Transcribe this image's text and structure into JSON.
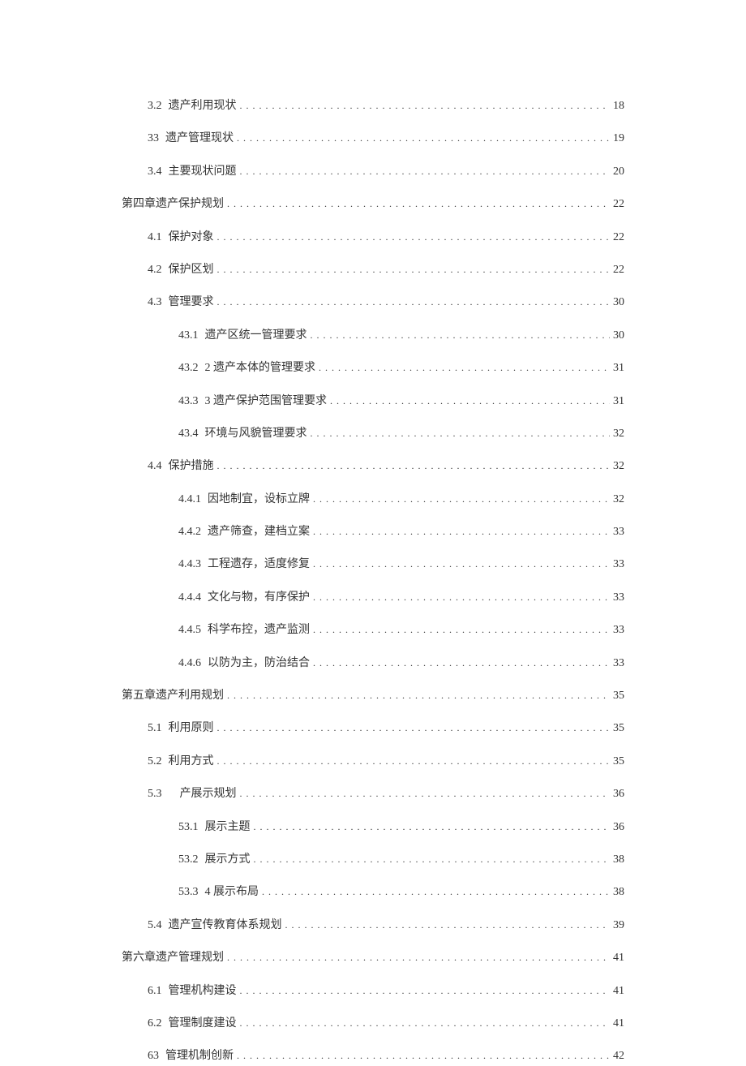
{
  "toc": {
    "entries": [
      {
        "indent": 1,
        "number": "3.2",
        "title": "遗产利用现状",
        "page": "18"
      },
      {
        "indent": 1,
        "number": "33",
        "title": "遗产管理现状",
        "page": "19"
      },
      {
        "indent": 1,
        "number": "3.4",
        "title": "主要现状问题",
        "page": "20"
      },
      {
        "indent": 0,
        "number": "",
        "title": "第四章遗产保护规划",
        "page": "22"
      },
      {
        "indent": 1,
        "number": "4.1",
        "title": "保护对象",
        "page": "22"
      },
      {
        "indent": 1,
        "number": "4.2",
        "title": "保护区划",
        "page": "22"
      },
      {
        "indent": 1,
        "number": "4.3",
        "title": "管理要求",
        "page": "30"
      },
      {
        "indent": 2,
        "number": "43.1",
        "title": "遗产区统一管理要求",
        "page": "30"
      },
      {
        "indent": 2,
        "number": "43.2",
        "title": "2 遗产本体的管理要求",
        "page": "31"
      },
      {
        "indent": 2,
        "number": "43.3",
        "title": "3 遗产保护范围管理要求",
        "page": "31"
      },
      {
        "indent": 2,
        "number": "43.4",
        "title": "环境与风貌管理要求",
        "page": "32"
      },
      {
        "indent": 1,
        "number": "4.4",
        "title": "保护措施",
        "page": "32"
      },
      {
        "indent": 2,
        "number": "4.4.1",
        "title": "因地制宜，设标立牌",
        "page": "32"
      },
      {
        "indent": 2,
        "number": "4.4.2",
        "title": "遗产筛查，建档立案",
        "page": "33"
      },
      {
        "indent": 2,
        "number": "4.4.3",
        "title": "工程遗存，适度修复",
        "page": "33"
      },
      {
        "indent": 2,
        "number": "4.4.4",
        "title": "文化与物，有序保护",
        "page": "33"
      },
      {
        "indent": 2,
        "number": "4.4.5",
        "title": "科学布控，遗产监测",
        "page": "33"
      },
      {
        "indent": 2,
        "number": "4.4.6",
        "title": "以防为主，防治结合",
        "page": "33"
      },
      {
        "indent": 0,
        "number": "",
        "title": "第五章遗产利用规划",
        "page": "35"
      },
      {
        "indent": 1,
        "number": "5.1",
        "title": "利用原则",
        "page": "35"
      },
      {
        "indent": 1,
        "number": "5.2",
        "title": "利用方式",
        "page": "35"
      },
      {
        "indent": 1,
        "number": "5.3",
        "title": "　产展示规划",
        "page": "36"
      },
      {
        "indent": 2,
        "number": "53.1",
        "title": "展示主题",
        "page": "36"
      },
      {
        "indent": 2,
        "number": "53.2",
        "title": "展示方式",
        "page": "38"
      },
      {
        "indent": 2,
        "number": "53.3",
        "title": "4 展示布局",
        "page": "38"
      },
      {
        "indent": 1,
        "number": "5.4",
        "title": "遗产宣传教育体系规划",
        "page": "39"
      },
      {
        "indent": 0,
        "number": "",
        "title": "第六章遗产管理规划",
        "page": "41"
      },
      {
        "indent": 1,
        "number": "6.1",
        "title": "管理机构建设",
        "page": "41"
      },
      {
        "indent": 1,
        "number": "6.2",
        "title": "管理制度建设",
        "page": "41"
      },
      {
        "indent": 1,
        "number": "63",
        "title": "管理机制创新",
        "page": "42"
      }
    ],
    "text_color": "#333333",
    "background_color": "#ffffff",
    "font_size": 14
  }
}
